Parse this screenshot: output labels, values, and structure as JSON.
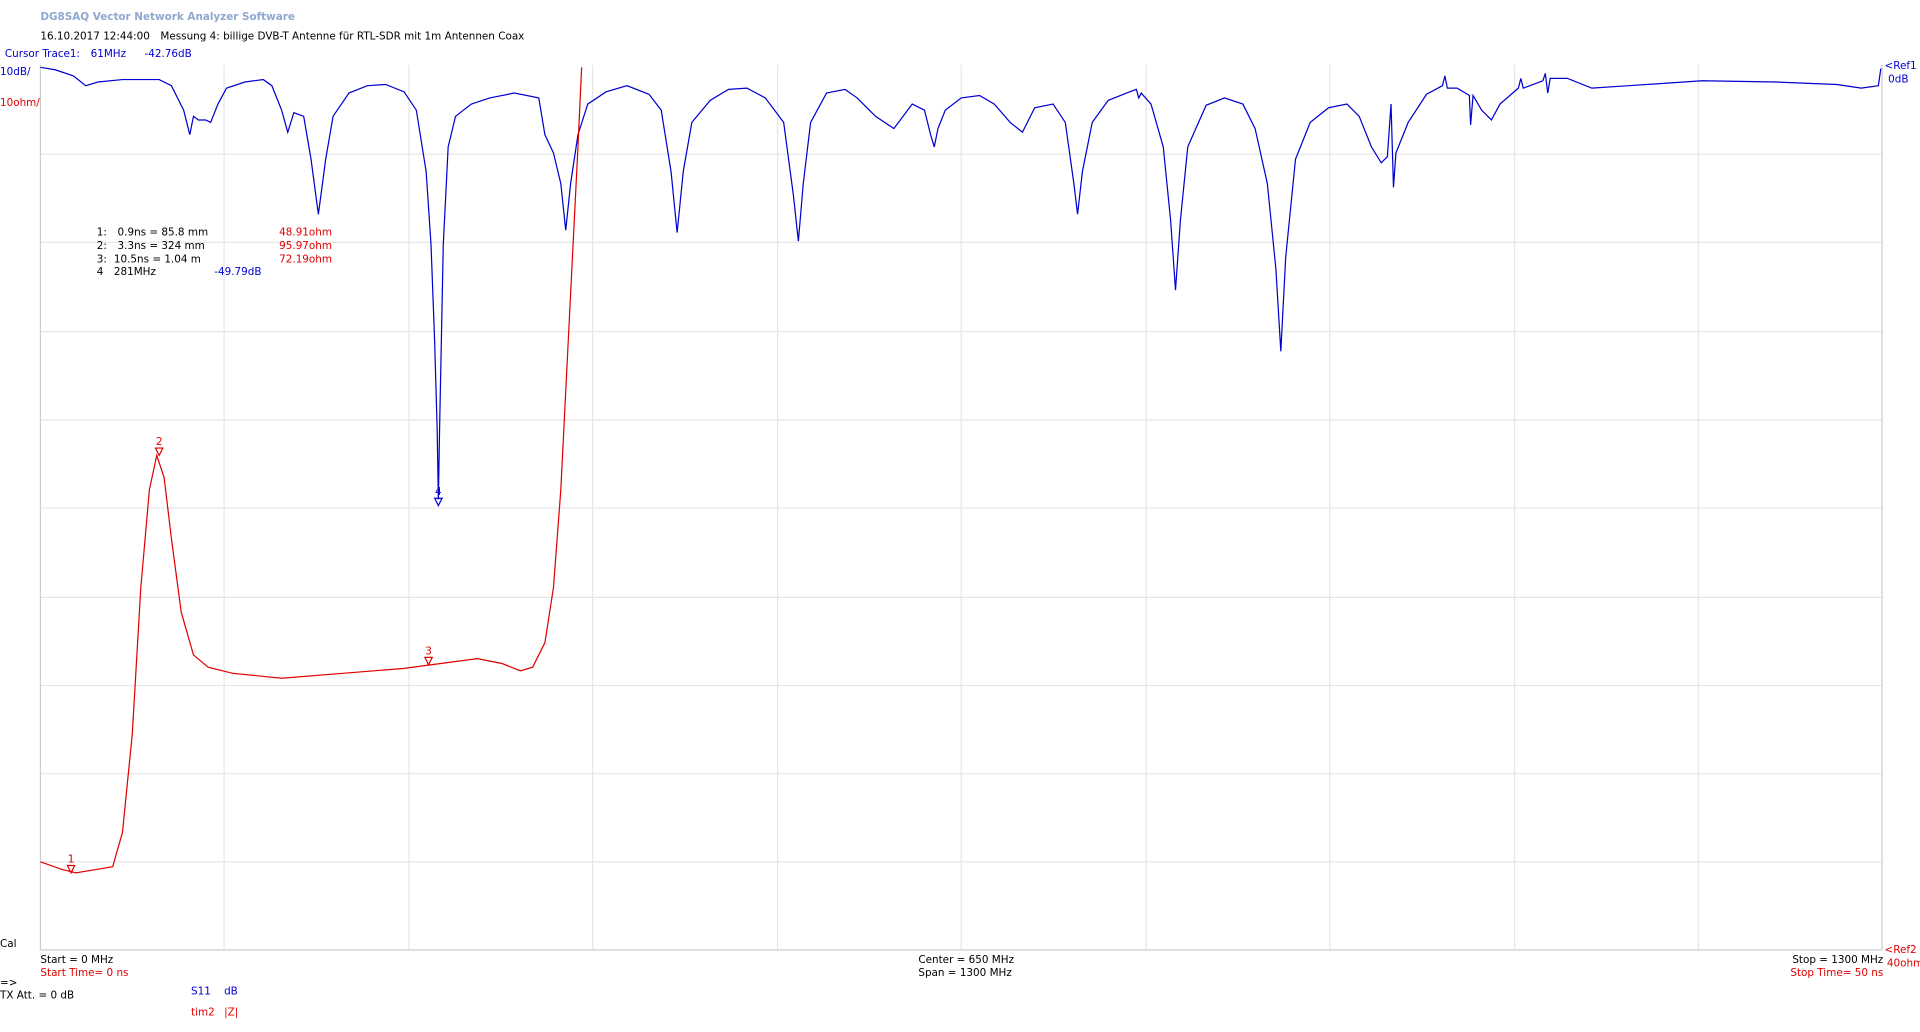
{
  "header": {
    "title": "DG8SAQ Vector Network Analyzer Software",
    "datetime": "16.10.2017   12:44:00",
    "measurement": "Messung 4: billige DVB-T Antenne für RTL-SDR mit 1m Antennen Coax"
  },
  "cursor": {
    "label": "Cursor Trace1:",
    "frequency": "61MHz",
    "level": "-42.76dB"
  },
  "scale": {
    "trace1": "10dB/",
    "trace2": "10ohm/",
    "ref1": "<Ref1",
    "ref1_value": "0dB",
    "ref2": "<Ref2",
    "ref2_value": "40ohm"
  },
  "markers_table": [
    [
      "1:",
      "0.9ns = 85.8 mm",
      "48.91ohm"
    ],
    [
      "2:",
      "3.3ns = 324 mm",
      "95.97ohm"
    ],
    [
      "3:",
      "10.5ns = 1.04 m",
      "72.19ohm"
    ],
    [
      "4",
      "281MHz",
      "-49.79dB"
    ]
  ],
  "marker_labels": [
    "1",
    "2",
    "3",
    "4"
  ],
  "footer": {
    "cal": "Cal",
    "start": "Start = 0 MHz",
    "start_time": "Start Time= 0 ns",
    "center": "Center = 650 MHz",
    "span": "Span = 1300 MHz",
    "stop": "Stop = 1300 MHz",
    "stop_time": "Stop Time= 50 ns",
    "arrow": "=>",
    "tx_att": "TX Att.  = 0 dB",
    "trace1_param": "S11",
    "trace1_format": "dB",
    "trace2_param": "tim2",
    "trace2_format": "|Z|"
  }
}
